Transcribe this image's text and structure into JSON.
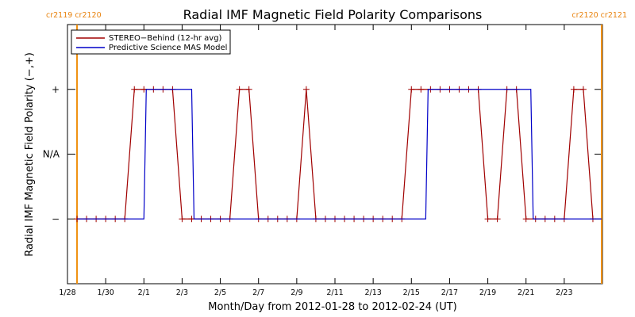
{
  "chart_data": {
    "type": "line",
    "title": "Radial IMF Magnetic Field Polarity Comparisons",
    "xlabel": "Month/Day from 2012-01-28 to 2012-02-24 (UT)",
    "ylabel": "Radial IMF Magnetic Field Polarity (−,+)",
    "x_range": [
      "2012-01-28",
      "2012-02-25"
    ],
    "y_ticks": [
      {
        "value": -1,
        "label": "−"
      },
      {
        "value": 0,
        "label": "N/A"
      },
      {
        "value": 1,
        "label": "+"
      }
    ],
    "ylim": [
      -2,
      2
    ],
    "x_ticks": [
      {
        "date": "2012-01-28",
        "label": "1/28"
      },
      {
        "date": "2012-01-30",
        "label": "1/30"
      },
      {
        "date": "2012-02-01",
        "label": "2/1"
      },
      {
        "date": "2012-02-03",
        "label": "2/3"
      },
      {
        "date": "2012-02-05",
        "label": "2/5"
      },
      {
        "date": "2012-02-07",
        "label": "2/7"
      },
      {
        "date": "2012-02-09",
        "label": "2/9"
      },
      {
        "date": "2012-02-11",
        "label": "2/11"
      },
      {
        "date": "2012-02-13",
        "label": "2/13"
      },
      {
        "date": "2012-02-15",
        "label": "2/15"
      },
      {
        "date": "2012-02-17",
        "label": "2/17"
      },
      {
        "date": "2012-02-19",
        "label": "2/19"
      },
      {
        "date": "2012-02-21",
        "label": "2/21"
      },
      {
        "date": "2012-02-23",
        "label": "2/23"
      }
    ],
    "carrington_markers": [
      {
        "date": "2012-01-28T12:00",
        "left_label": "cr2119",
        "right_label": "cr2120"
      },
      {
        "date": "2012-02-24T23:00",
        "left_label": "cr2120",
        "right_label": "cr2121"
      }
    ],
    "legend_position": "top-left",
    "series": [
      {
        "name": "STEREO−Behind (12-hr avg)",
        "color": "#a00000",
        "marker": "plus",
        "points": [
          [
            "2012-01-28T12:00",
            -1
          ],
          [
            "2012-01-29T00:00",
            -1
          ],
          [
            "2012-01-29T12:00",
            -1
          ],
          [
            "2012-01-30T00:00",
            -1
          ],
          [
            "2012-01-30T12:00",
            -1
          ],
          [
            "2012-01-31T00:00",
            -1
          ],
          [
            "2012-01-31T12:00",
            1
          ],
          [
            "2012-02-01T00:00",
            1
          ],
          [
            "2012-02-01T12:00",
            1
          ],
          [
            "2012-02-02T00:00",
            1
          ],
          [
            "2012-02-02T12:00",
            1
          ],
          [
            "2012-02-03T00:00",
            -1
          ],
          [
            "2012-02-03T12:00",
            -1
          ],
          [
            "2012-02-04T00:00",
            -1
          ],
          [
            "2012-02-04T12:00",
            -1
          ],
          [
            "2012-02-05T00:00",
            -1
          ],
          [
            "2012-02-05T12:00",
            -1
          ],
          [
            "2012-02-06T00:00",
            1
          ],
          [
            "2012-02-06T12:00",
            1
          ],
          [
            "2012-02-07T00:00",
            -1
          ],
          [
            "2012-02-07T12:00",
            -1
          ],
          [
            "2012-02-08T00:00",
            -1
          ],
          [
            "2012-02-08T12:00",
            -1
          ],
          [
            "2012-02-09T00:00",
            -1
          ],
          [
            "2012-02-09T12:00",
            1
          ],
          [
            "2012-02-10T00:00",
            -1
          ],
          [
            "2012-02-10T12:00",
            -1
          ],
          [
            "2012-02-11T00:00",
            -1
          ],
          [
            "2012-02-11T12:00",
            -1
          ],
          [
            "2012-02-12T00:00",
            -1
          ],
          [
            "2012-02-12T12:00",
            -1
          ],
          [
            "2012-02-13T00:00",
            -1
          ],
          [
            "2012-02-13T12:00",
            -1
          ],
          [
            "2012-02-14T00:00",
            -1
          ],
          [
            "2012-02-14T12:00",
            -1
          ],
          [
            "2012-02-15T00:00",
            1
          ],
          [
            "2012-02-15T12:00",
            1
          ],
          [
            "2012-02-16T00:00",
            1
          ],
          [
            "2012-02-16T12:00",
            1
          ],
          [
            "2012-02-17T00:00",
            1
          ],
          [
            "2012-02-17T12:00",
            1
          ],
          [
            "2012-02-18T00:00",
            1
          ],
          [
            "2012-02-18T12:00",
            1
          ],
          [
            "2012-02-19T00:00",
            -1
          ],
          [
            "2012-02-19T12:00",
            -1
          ],
          [
            "2012-02-20T00:00",
            1
          ],
          [
            "2012-02-20T12:00",
            1
          ],
          [
            "2012-02-21T00:00",
            -1
          ],
          [
            "2012-02-21T12:00",
            -1
          ],
          [
            "2012-02-22T00:00",
            -1
          ],
          [
            "2012-02-22T12:00",
            -1
          ],
          [
            "2012-02-23T00:00",
            -1
          ],
          [
            "2012-02-23T12:00",
            1
          ],
          [
            "2012-02-24T00:00",
            1
          ],
          [
            "2012-02-24T12:00",
            -1
          ]
        ]
      },
      {
        "name": "Predictive Science MAS Model",
        "color": "#0000c8",
        "marker": "none",
        "points": [
          [
            "2012-01-28T12:00",
            -1
          ],
          [
            "2012-02-01T00:00",
            -1
          ],
          [
            "2012-02-01T03:00",
            1
          ],
          [
            "2012-02-03T12:00",
            1
          ],
          [
            "2012-02-03T15:00",
            -1
          ],
          [
            "2012-02-15T18:00",
            -1
          ],
          [
            "2012-02-15T21:00",
            1
          ],
          [
            "2012-02-21T06:00",
            1
          ],
          [
            "2012-02-21T09:00",
            -1
          ],
          [
            "2012-02-24T23:00",
            -1
          ]
        ]
      }
    ]
  }
}
